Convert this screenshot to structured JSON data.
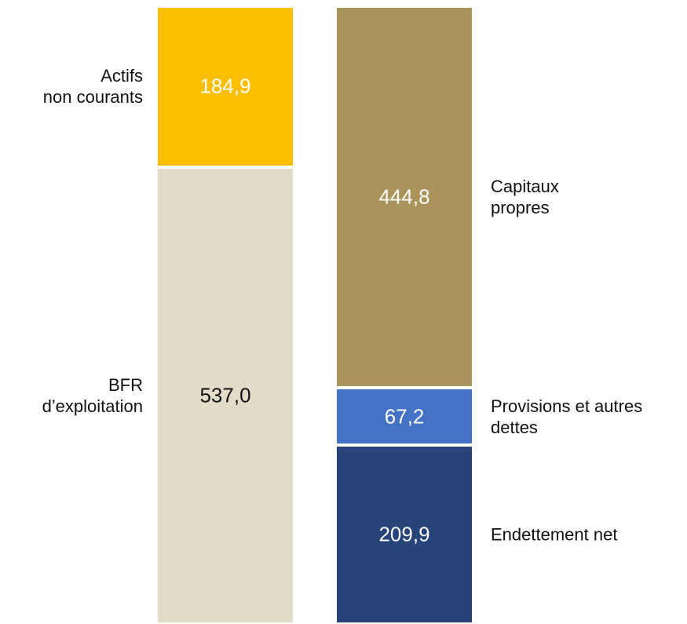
{
  "chart_data": {
    "type": "stacked_bar",
    "categories": [
      null,
      null
    ],
    "series": [
      {
        "name": "BFR\nd’exploitation",
        "color": "#e3dcc9",
        "label_color": "#111111",
        "values": [
          537.0,
          null
        ],
        "value_labels": [
          "537,0",
          null
        ]
      },
      {
        "name": "Actifs\nnon courants",
        "color": "#fbbf00",
        "label_color": "#ffffff",
        "values": [
          184.9,
          null
        ],
        "value_labels": [
          "184,9",
          null
        ]
      },
      {
        "name": "Endettement net",
        "color": "#264478",
        "label_color": "#ffffff",
        "values": [
          null,
          209.9
        ],
        "value_labels": [
          null,
          "209,9"
        ]
      },
      {
        "name": "Provisions et autres\ndettes",
        "color": "#4472c4",
        "label_color": "#ffffff",
        "values": [
          null,
          67.2
        ],
        "value_labels": [
          null,
          "67,2"
        ]
      },
      {
        "name": "Capitaux\npropres",
        "color": "#aa945c",
        "label_color": "#ffffff",
        "values": [
          null,
          444.8
        ],
        "value_labels": [
          null,
          "444,8"
        ]
      }
    ]
  }
}
